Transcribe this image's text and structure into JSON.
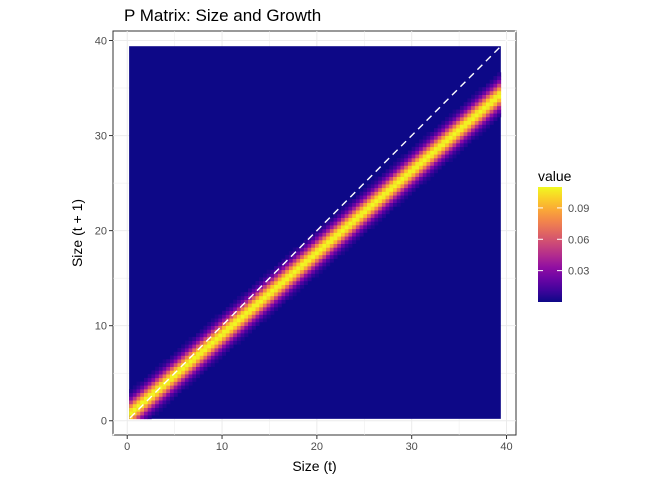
{
  "chart_data": {
    "type": "heatmap",
    "title": "P Matrix: Size and Growth",
    "xlabel": "Size (t)",
    "ylabel": "Size (t + 1)",
    "xlim": [
      -1.5,
      41
    ],
    "ylim": [
      -1.5,
      41
    ],
    "x_ticks": [
      0,
      10,
      20,
      30,
      40
    ],
    "y_ticks": [
      0,
      10,
      20,
      30,
      40
    ],
    "grid": true,
    "size_domain": [
      0.2,
      39.4
    ],
    "growth_model": {
      "mean_slope": 0.86,
      "mean_intercept": 0.5,
      "sd": 0.9,
      "max_value": 0.11,
      "min_value": 0.0
    },
    "reference_line": {
      "type": "identity",
      "style": "dashed",
      "color": "#ffffff"
    },
    "legend": {
      "title": "value",
      "placement": "right",
      "breaks": [
        "0.09",
        "0.06",
        "0.03"
      ],
      "break_values": [
        0.09,
        0.06,
        0.03
      ],
      "colorscale": "plasma",
      "range": [
        0.0,
        0.11
      ]
    }
  }
}
